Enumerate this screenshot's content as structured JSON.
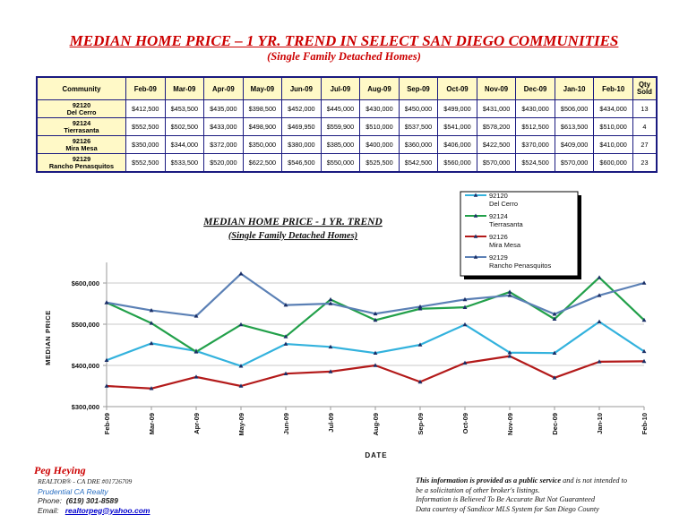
{
  "header": {
    "title": "MEDIAN HOME PRICE – 1 YR. TREND IN SELECT SAN DIEGO COMMUNITIES",
    "subtitle": "(Single Family Detached Homes)"
  },
  "table": {
    "community_header": "Community",
    "qty_header_line1": "Qty",
    "qty_header_line2": "Sold",
    "months": [
      "Feb-09",
      "Mar-09",
      "Apr-09",
      "May-09",
      "Jun-09",
      "Jul-09",
      "Aug-09",
      "Sep-09",
      "Oct-09",
      "Nov-09",
      "Dec-09",
      "Jan-10",
      "Feb-10"
    ],
    "rows": [
      {
        "zip": "92120",
        "name": "Del Cerro",
        "prices": [
          "$412,500",
          "$453,500",
          "$435,000",
          "$398,500",
          "$452,000",
          "$445,000",
          "$430,000",
          "$450,000",
          "$499,000",
          "$431,000",
          "$430,000",
          "$506,000",
          "$434,000"
        ],
        "qty": "13"
      },
      {
        "zip": "92124",
        "name": "Tierrasanta",
        "prices": [
          "$552,500",
          "$502,500",
          "$433,000",
          "$498,900",
          "$469,950",
          "$559,900",
          "$510,000",
          "$537,500",
          "$541,000",
          "$578,200",
          "$512,500",
          "$613,500",
          "$510,000"
        ],
        "qty": "4"
      },
      {
        "zip": "92126",
        "name": "Mira Mesa",
        "prices": [
          "$350,000",
          "$344,000",
          "$372,000",
          "$350,000",
          "$380,000",
          "$385,000",
          "$400,000",
          "$360,000",
          "$406,000",
          "$422,500",
          "$370,000",
          "$409,000",
          "$410,000"
        ],
        "qty": "27"
      },
      {
        "zip": "92129",
        "name": "Rancho Penasquitos",
        "prices": [
          "$552,500",
          "$533,500",
          "$520,000",
          "$622,500",
          "$546,500",
          "$550,000",
          "$525,500",
          "$542,500",
          "$560,000",
          "$570,000",
          "$524,500",
          "$570,000",
          "$600,000"
        ],
        "qty": "23"
      }
    ]
  },
  "chart_data": {
    "type": "line",
    "title": "MEDIAN HOME PRICE - 1 YR. TREND",
    "subtitle": "(Single Family Detached Homes)",
    "xlabel": "DATE",
    "ylabel": "MEDIAN PRICE",
    "ylim": [
      300000,
      650000
    ],
    "yticks": [
      300000,
      400000,
      500000,
      600000
    ],
    "ytick_labels": [
      "$300,000",
      "$400,000",
      "$500,000",
      "$600,000"
    ],
    "categories": [
      "Feb-09",
      "Mar-09",
      "Apr-09",
      "May-09",
      "Jun-09",
      "Jul-09",
      "Aug-09",
      "Sep-09",
      "Oct-09",
      "Nov-09",
      "Dec-09",
      "Jan-10",
      "Feb-10"
    ],
    "grid": "horizontal",
    "legend_position": "top-right",
    "series": [
      {
        "name": "92120 Del Cerro",
        "legend_line1": "92120",
        "legend_line2": "Del Cerro",
        "color": "#33b2dd",
        "values": [
          412500,
          453500,
          435000,
          398500,
          452000,
          445000,
          430000,
          450000,
          499000,
          431000,
          430000,
          506000,
          434000
        ]
      },
      {
        "name": "92124 Tierrasanta",
        "legend_line1": "92124",
        "legend_line2": "Tierrasanta",
        "color": "#22a04a",
        "values": [
          552500,
          502500,
          433000,
          498900,
          469950,
          559900,
          510000,
          537500,
          541000,
          578200,
          512500,
          613500,
          510000
        ]
      },
      {
        "name": "92126 Mira Mesa",
        "legend_line1": "92126",
        "legend_line2": "Mira Mesa",
        "color": "#b31a1a",
        "values": [
          350000,
          344000,
          372000,
          350000,
          380000,
          385000,
          400000,
          360000,
          406000,
          422500,
          370000,
          409000,
          410000
        ]
      },
      {
        "name": "92129 Rancho Penasquitos",
        "legend_line1": "92129",
        "legend_line2": "Rancho Penasquitos",
        "color": "#5b80b5",
        "values": [
          552500,
          533500,
          520000,
          622500,
          546500,
          550000,
          525500,
          542500,
          560000,
          570000,
          524500,
          570000,
          600000
        ]
      }
    ]
  },
  "footer": {
    "name": "Peg Heying",
    "realtor_line": "REALTOR® - CA DRE #01726709",
    "company": "Prudential CA Realty",
    "phone_label": "Phone:",
    "phone": "(619) 301-8589",
    "email_label": "Email:",
    "email": "realtorpeg@yahoo.com",
    "disclaimer_bold": "This information is provided as a public service",
    "disclaimer_rest": " and is not intended to be a solicitation of other broker's listings.",
    "disclaimer_line2": "Information is Believed To Be Accurate But Not Guaranteed",
    "disclaimer_line3": "Data courtesy of Sandicor MLS System for San Diego County"
  }
}
